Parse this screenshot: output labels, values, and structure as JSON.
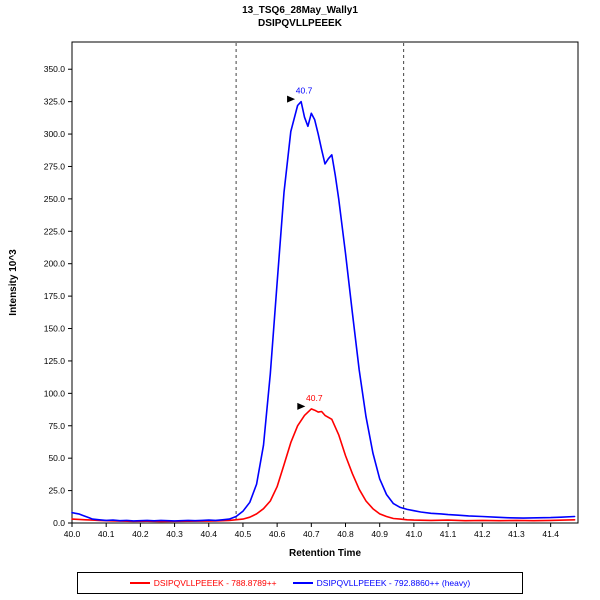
{
  "chart_data": {
    "type": "line",
    "title": "13_TSQ6_28May_Wally1",
    "subtitle": "DSIPQVLLPEEEK",
    "xlabel": "Retention Time",
    "ylabel": "Intensity 10^3",
    "xlim": [
      40.0,
      41.48
    ],
    "ylim": [
      0,
      371
    ],
    "x_ticks": [
      40.0,
      40.1,
      40.2,
      40.3,
      40.4,
      40.5,
      40.6,
      40.7,
      40.8,
      40.9,
      41.0,
      41.1,
      41.2,
      41.3,
      41.4
    ],
    "y_ticks": [
      0.0,
      25.0,
      50.0,
      75.0,
      100.0,
      125.0,
      150.0,
      175.0,
      200.0,
      225.0,
      250.0,
      275.0,
      300.0,
      325.0,
      350.0
    ],
    "integration_boundaries": [
      40.48,
      40.97
    ],
    "grid": false,
    "legend_position": "bottom",
    "series": [
      {
        "name": "DSIPQVLLPEEEK - 788.8789++",
        "color": "#ff0000",
        "annotation": {
          "label": "40.7",
          "x": 40.7,
          "y": 88
        },
        "points": [
          [
            40.0,
            3
          ],
          [
            40.02,
            2.8
          ],
          [
            40.04,
            2.5
          ],
          [
            40.06,
            2.2
          ],
          [
            40.08,
            2.0
          ],
          [
            40.1,
            1.8
          ],
          [
            40.14,
            1.5
          ],
          [
            40.18,
            1.3
          ],
          [
            40.22,
            1.4
          ],
          [
            40.26,
            1.2
          ],
          [
            40.3,
            1.3
          ],
          [
            40.34,
            1.4
          ],
          [
            40.38,
            1.5
          ],
          [
            40.42,
            1.6
          ],
          [
            40.46,
            2.0
          ],
          [
            40.5,
            3.0
          ],
          [
            40.52,
            4.5
          ],
          [
            40.54,
            7.0
          ],
          [
            40.56,
            11
          ],
          [
            40.58,
            17
          ],
          [
            40.6,
            28
          ],
          [
            40.62,
            45
          ],
          [
            40.64,
            62
          ],
          [
            40.66,
            75
          ],
          [
            40.68,
            83
          ],
          [
            40.7,
            88
          ],
          [
            40.71,
            87
          ],
          [
            40.72,
            85.5
          ],
          [
            40.73,
            86
          ],
          [
            40.74,
            83
          ],
          [
            40.76,
            80
          ],
          [
            40.78,
            68
          ],
          [
            40.8,
            52
          ],
          [
            40.82,
            38
          ],
          [
            40.84,
            26
          ],
          [
            40.86,
            17
          ],
          [
            40.88,
            11
          ],
          [
            40.9,
            7
          ],
          [
            40.92,
            5
          ],
          [
            40.94,
            3.5
          ],
          [
            40.96,
            3
          ],
          [
            40.98,
            2.5
          ],
          [
            41.0,
            2.2
          ],
          [
            41.05,
            2.0
          ],
          [
            41.1,
            2.2
          ],
          [
            41.15,
            1.8
          ],
          [
            41.2,
            2.0
          ],
          [
            41.25,
            1.8
          ],
          [
            41.3,
            2.0
          ],
          [
            41.35,
            1.8
          ],
          [
            41.4,
            2.0
          ],
          [
            41.44,
            2.2
          ],
          [
            41.47,
            2.5
          ]
        ]
      },
      {
        "name": "DSIPQVLLPEEEK - 792.8860++ (heavy)",
        "color": "#0000ff",
        "annotation": {
          "label": "40.7",
          "x": 40.67,
          "y": 325
        },
        "points": [
          [
            40.0,
            8
          ],
          [
            40.01,
            7.5
          ],
          [
            40.02,
            7
          ],
          [
            40.03,
            6
          ],
          [
            40.04,
            5
          ],
          [
            40.05,
            4
          ],
          [
            40.06,
            3
          ],
          [
            40.08,
            2.5
          ],
          [
            40.1,
            2
          ],
          [
            40.12,
            2.2
          ],
          [
            40.14,
            1.8
          ],
          [
            40.16,
            2.0
          ],
          [
            40.18,
            1.6
          ],
          [
            40.2,
            1.8
          ],
          [
            40.22,
            2.0
          ],
          [
            40.24,
            1.7
          ],
          [
            40.26,
            2.0
          ],
          [
            40.28,
            1.8
          ],
          [
            40.3,
            1.6
          ],
          [
            40.32,
            1.8
          ],
          [
            40.34,
            2.0
          ],
          [
            40.36,
            1.8
          ],
          [
            40.38,
            2.0
          ],
          [
            40.4,
            2.2
          ],
          [
            40.42,
            2.0
          ],
          [
            40.44,
            2.5
          ],
          [
            40.46,
            3.0
          ],
          [
            40.48,
            5
          ],
          [
            40.5,
            9
          ],
          [
            40.52,
            16
          ],
          [
            40.54,
            30
          ],
          [
            40.56,
            60
          ],
          [
            40.58,
            115
          ],
          [
            40.6,
            185
          ],
          [
            40.62,
            255
          ],
          [
            40.64,
            302
          ],
          [
            40.66,
            322
          ],
          [
            40.67,
            325
          ],
          [
            40.68,
            313
          ],
          [
            40.69,
            306
          ],
          [
            40.7,
            316
          ],
          [
            40.71,
            311
          ],
          [
            40.72,
            300
          ],
          [
            40.73,
            288
          ],
          [
            40.74,
            277
          ],
          [
            40.75,
            281
          ],
          [
            40.76,
            284
          ],
          [
            40.77,
            268
          ],
          [
            40.78,
            250
          ],
          [
            40.8,
            208
          ],
          [
            40.82,
            162
          ],
          [
            40.84,
            118
          ],
          [
            40.86,
            82
          ],
          [
            40.88,
            54
          ],
          [
            40.9,
            34
          ],
          [
            40.92,
            22
          ],
          [
            40.94,
            15
          ],
          [
            40.96,
            12
          ],
          [
            40.98,
            10.5
          ],
          [
            41.0,
            9.5
          ],
          [
            41.02,
            8.5
          ],
          [
            41.05,
            7.5
          ],
          [
            41.08,
            7
          ],
          [
            41.1,
            6.5
          ],
          [
            41.13,
            6
          ],
          [
            41.16,
            5.5
          ],
          [
            41.2,
            5
          ],
          [
            41.24,
            4.5
          ],
          [
            41.28,
            4
          ],
          [
            41.32,
            3.8
          ],
          [
            41.36,
            4
          ],
          [
            41.4,
            4.2
          ],
          [
            41.43,
            4.5
          ],
          [
            41.47,
            5
          ]
        ]
      }
    ]
  },
  "legend": {
    "items": [
      {
        "label": "DSIPQVLLPEEEK - 788.8789++",
        "color": "#ff0000"
      },
      {
        "label": "DSIPQVLLPEEEK - 792.8860++ (heavy)",
        "color": "#0000ff"
      }
    ]
  }
}
